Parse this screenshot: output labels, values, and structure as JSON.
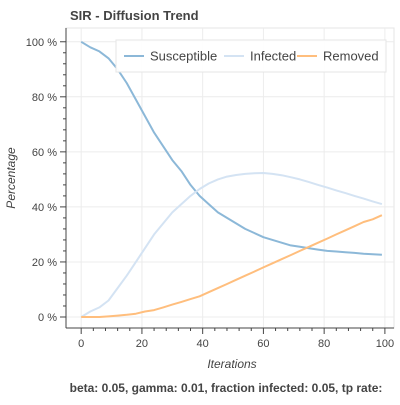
{
  "chart_data": {
    "type": "line",
    "title": "SIR - Diffusion Trend",
    "xlabel": "Iterations",
    "ylabel": "Percentage",
    "xlim": [
      -5,
      103
    ],
    "ylim": [
      -4,
      105
    ],
    "x_ticks": [
      0,
      20,
      40,
      60,
      80,
      100
    ],
    "y_ticks": [
      0,
      20,
      40,
      60,
      80,
      100
    ],
    "y_tick_labels": [
      "0 %",
      "20 %",
      "40 %",
      "60 %",
      "80 %",
      "100 %"
    ],
    "grid": true,
    "legend_position": "top-right",
    "caption": "beta: 0.05, gamma: 0.01, fraction infected: 0.05, tp rate:",
    "series": [
      {
        "name": "Susceptible",
        "color": "#8cb8d8",
        "points": [
          [
            0,
            100
          ],
          [
            3,
            98
          ],
          [
            6,
            96.5
          ],
          [
            9,
            94
          ],
          [
            12,
            90
          ],
          [
            15,
            85
          ],
          [
            18,
            79
          ],
          [
            21,
            73
          ],
          [
            24,
            67
          ],
          [
            27,
            62
          ],
          [
            30,
            57
          ],
          [
            33,
            53
          ],
          [
            36,
            48
          ],
          [
            39,
            44
          ],
          [
            42,
            41
          ],
          [
            45,
            38
          ],
          [
            48,
            36
          ],
          [
            51,
            34
          ],
          [
            54,
            32
          ],
          [
            57,
            30.5
          ],
          [
            60,
            29
          ],
          [
            63,
            28
          ],
          [
            66,
            27
          ],
          [
            69,
            26
          ],
          [
            72,
            25.5
          ],
          [
            75,
            25
          ],
          [
            78,
            24.5
          ],
          [
            81,
            24
          ],
          [
            84,
            23.8
          ],
          [
            87,
            23.5
          ],
          [
            90,
            23.3
          ],
          [
            93,
            23
          ],
          [
            96,
            22.8
          ],
          [
            99,
            22.6
          ]
        ]
      },
      {
        "name": "Infected",
        "color": "#d4e3f3",
        "points": [
          [
            0,
            0
          ],
          [
            3,
            2
          ],
          [
            6,
            3.5
          ],
          [
            9,
            6
          ],
          [
            12,
            10.5
          ],
          [
            15,
            15
          ],
          [
            18,
            20
          ],
          [
            21,
            25
          ],
          [
            24,
            30
          ],
          [
            27,
            34
          ],
          [
            30,
            38
          ],
          [
            33,
            41
          ],
          [
            36,
            44
          ],
          [
            39,
            46.5
          ],
          [
            42,
            48.5
          ],
          [
            45,
            50
          ],
          [
            48,
            51
          ],
          [
            51,
            51.6
          ],
          [
            54,
            52
          ],
          [
            57,
            52.2
          ],
          [
            60,
            52.3
          ],
          [
            63,
            52
          ],
          [
            66,
            51.5
          ],
          [
            69,
            50.8
          ],
          [
            72,
            50
          ],
          [
            75,
            49
          ],
          [
            78,
            48
          ],
          [
            81,
            47
          ],
          [
            84,
            46
          ],
          [
            87,
            45
          ],
          [
            90,
            44
          ],
          [
            93,
            43
          ],
          [
            96,
            42
          ],
          [
            99,
            41
          ]
        ]
      },
      {
        "name": "Removed",
        "color": "#ffbe7d",
        "points": [
          [
            0,
            0
          ],
          [
            3,
            0
          ],
          [
            6,
            0
          ],
          [
            9,
            0.2
          ],
          [
            12,
            0.5
          ],
          [
            15,
            0.8
          ],
          [
            18,
            1.2
          ],
          [
            21,
            2
          ],
          [
            24,
            2.5
          ],
          [
            27,
            3.5
          ],
          [
            30,
            4.5
          ],
          [
            33,
            5.5
          ],
          [
            36,
            6.5
          ],
          [
            39,
            7.5
          ],
          [
            42,
            9
          ],
          [
            45,
            10.5
          ],
          [
            48,
            12
          ],
          [
            51,
            13.5
          ],
          [
            54,
            15
          ],
          [
            57,
            16.5
          ],
          [
            60,
            18
          ],
          [
            63,
            19.5
          ],
          [
            66,
            21
          ],
          [
            69,
            22.5
          ],
          [
            72,
            24
          ],
          [
            75,
            25.5
          ],
          [
            78,
            27
          ],
          [
            81,
            28.5
          ],
          [
            84,
            30
          ],
          [
            87,
            31.5
          ],
          [
            90,
            33
          ],
          [
            93,
            34.5
          ],
          [
            96,
            35.5
          ],
          [
            99,
            37
          ]
        ]
      }
    ]
  }
}
